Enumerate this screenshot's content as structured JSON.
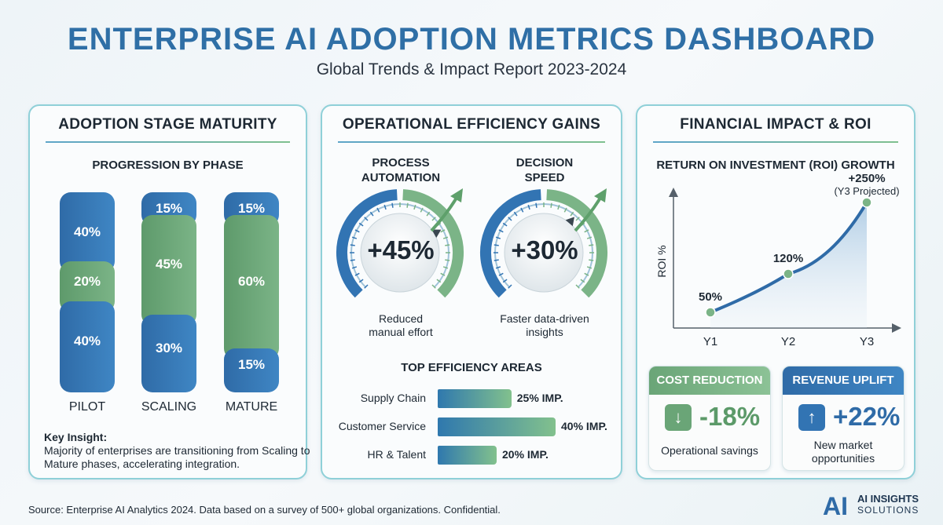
{
  "header": {
    "title": "ENTERPRISE AI ADOPTION METRICS DASHBOARD",
    "subtitle": "Global Trends & Impact Report 2023-2024"
  },
  "adoption": {
    "title": "ADOPTION STAGE MATURITY",
    "section": "PROGRESSION BY PHASE",
    "insight_label": "Key Insight:",
    "insight_text": "Majority of enterprises are transitioning from Scaling to Mature phases, accelerating integration.",
    "colors": {
      "blue": "#3274b3",
      "green": "#6aa577"
    }
  },
  "efficiency": {
    "title": "OPERATIONAL EFFICIENCY GAINS",
    "gauges": [
      {
        "head": "PROCESS AUTOMATION",
        "value": "+45%",
        "caption": "Reduced manual effort"
      },
      {
        "head": "DECISION SPEED",
        "value": "+30%",
        "caption": "Faster data-driven insights"
      }
    ],
    "areas_title": "TOP EFFICIENCY AREAS"
  },
  "financial": {
    "title": "FINANCIAL IMPACT & ROI",
    "roi_title": "RETURN ON INVESTMENT (ROI) GROWTH",
    "projection_note": "(Y3 Projected)",
    "cost": {
      "head": "COST REDUCTION",
      "arrow": "↓",
      "value": "-18%",
      "caption": "Operational savings"
    },
    "revenue": {
      "head": "REVENUE UPLIFT",
      "arrow": "↑",
      "value": "+22%",
      "caption": "New market opportunities"
    }
  },
  "footer": {
    "source": "Source: Enterprise AI Analytics 2024. Data based on a survey of 500+ global organizations. Confidential.",
    "logo_mark": "AI",
    "logo_name": "AI INSIGHTS",
    "logo_sub": "SOLUTIONS"
  },
  "chart_data": [
    {
      "type": "bar",
      "title": "PROGRESSION BY PHASE",
      "categories": [
        "PILOT",
        "SCALING",
        "MATURE"
      ],
      "stacked": true,
      "stack_order_bottom_to_top": true,
      "segments": [
        [
          {
            "value": 40,
            "label": "40%",
            "color": "blue"
          },
          {
            "value": 20,
            "label": "20%",
            "color": "green"
          },
          {
            "value": 40,
            "label": "40%",
            "color": "blue"
          }
        ],
        [
          {
            "value": 30,
            "label": "30%",
            "color": "blue"
          },
          {
            "value": 45,
            "label": "45%",
            "color": "green"
          },
          {
            "value": 15,
            "label": "15%",
            "color": "blue"
          }
        ],
        [
          {
            "value": 15,
            "label": "15%",
            "color": "blue"
          },
          {
            "value": 60,
            "label": "60%",
            "color": "green"
          },
          {
            "value": 15,
            "label": "15%",
            "color": "blue"
          }
        ]
      ]
    },
    {
      "type": "bar",
      "orientation": "horizontal",
      "title": "TOP EFFICIENCY AREAS",
      "categories": [
        "Supply Chain",
        "Customer Service",
        "HR & Talent"
      ],
      "values": [
        25,
        40,
        20
      ],
      "value_labels": [
        "25% IMP.",
        "40% IMP.",
        "20% IMP."
      ]
    },
    {
      "type": "line",
      "title": "RETURN ON INVESTMENT (ROI) GROWTH",
      "x": [
        "Y1",
        "Y2",
        "Y3"
      ],
      "y": [
        50,
        120,
        250
      ],
      "point_labels": [
        "50%",
        "120%",
        "+250%"
      ],
      "ylabel": "ROI %",
      "xlabel": "",
      "ylim": [
        0,
        300
      ]
    },
    {
      "type": "gauge",
      "series": [
        {
          "name": "PROCESS AUTOMATION",
          "value": 45
        },
        {
          "name": "DECISION SPEED",
          "value": 30
        }
      ]
    }
  ]
}
